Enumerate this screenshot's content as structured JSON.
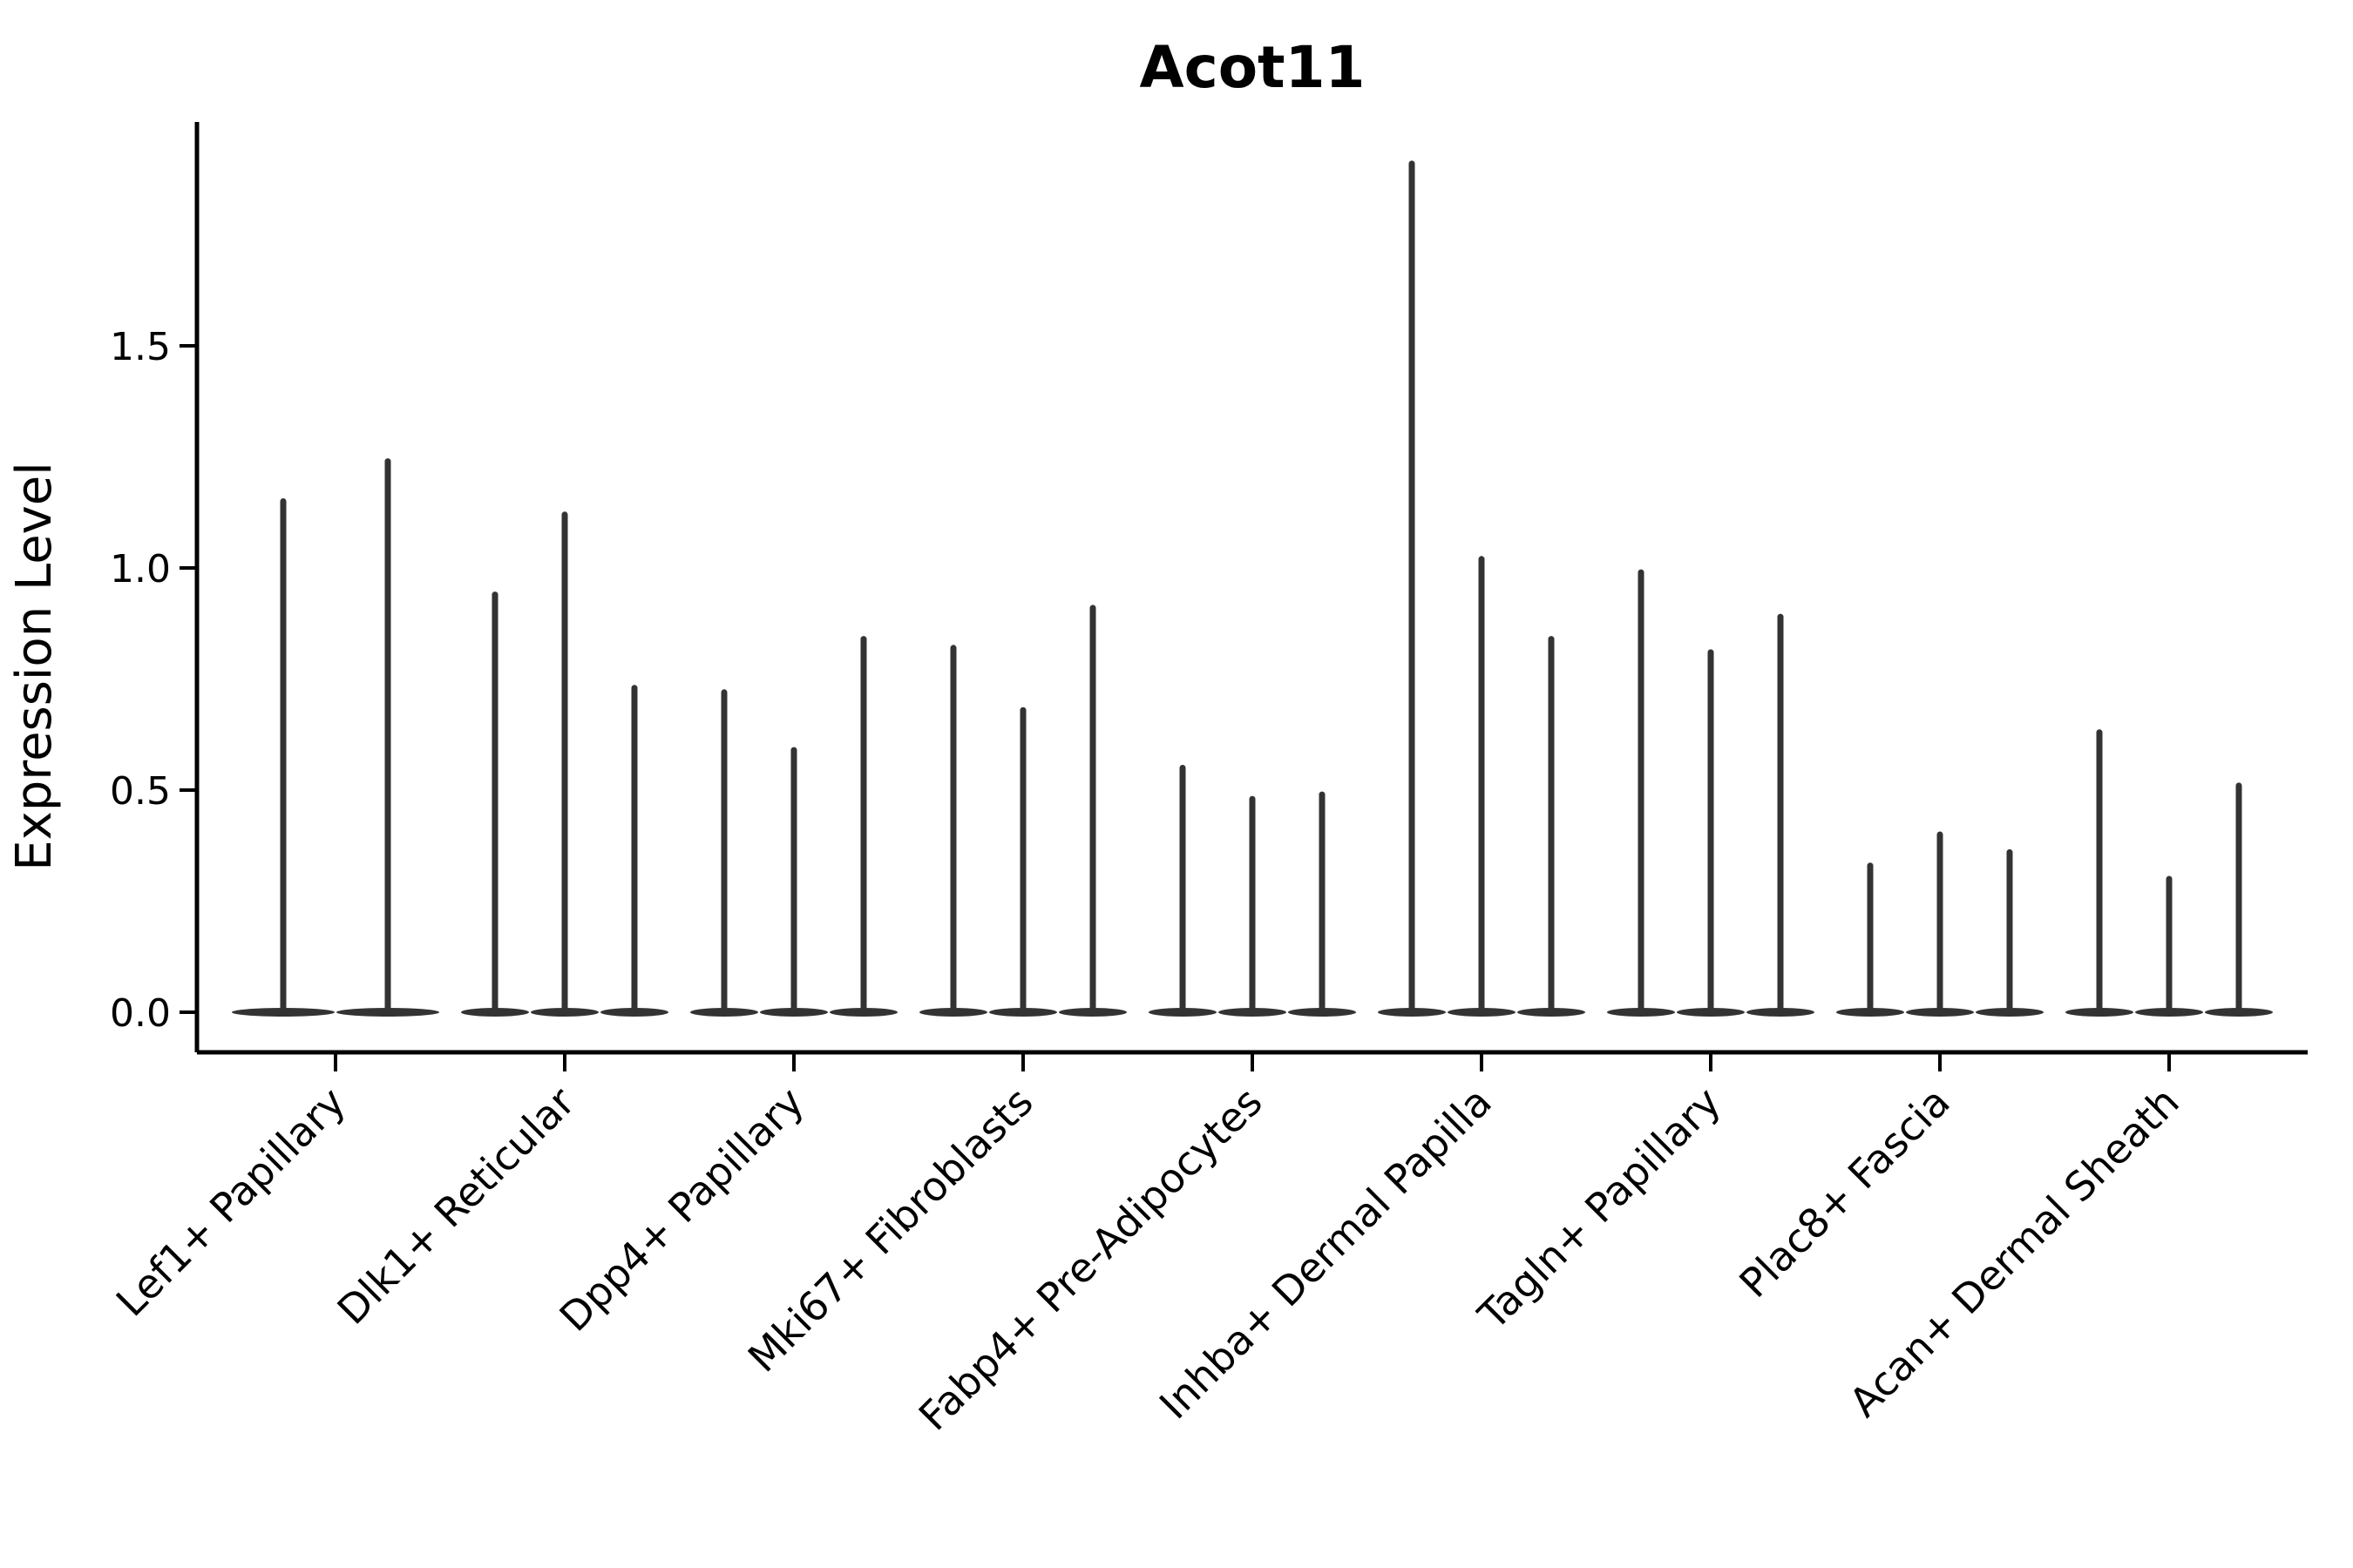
{
  "chart_data": {
    "type": "violin",
    "title": "Acot11",
    "ylabel": "Expression Level",
    "xlabel": "",
    "ytick_labels": [
      "0.0",
      "0.5",
      "1.0",
      "1.5"
    ],
    "ylim": [
      -0.09,
      2.0
    ],
    "grid": false,
    "legend": null,
    "categories": [
      "Lef1+ Papillary",
      "Dlk1+ Reticular",
      "Dpp4+ Papillary",
      "Mki67+ Fibroblasts",
      "Fabp4+ Pre-Adipocytes",
      "Inhba+ Dermal Papilla",
      "Tagln+ Papillary",
      "Plac8+ Fascia",
      "Acan+ Dermal Sheath"
    ],
    "groups": [
      {
        "category": "Lef1+ Papillary",
        "violin_maxima": [
          1.15,
          1.24
        ]
      },
      {
        "category": "Dlk1+ Reticular",
        "violin_maxima": [
          0.94,
          1.12,
          0.73
        ]
      },
      {
        "category": "Dpp4+ Papillary",
        "violin_maxima": [
          0.72,
          0.59,
          0.84
        ]
      },
      {
        "category": "Mki67+ Fibroblasts",
        "violin_maxima": [
          0.82,
          0.68,
          0.91
        ]
      },
      {
        "category": "Fabp4+ Pre-Adipocytes",
        "violin_maxima": [
          0.55,
          0.48,
          0.49
        ]
      },
      {
        "category": "Inhba+ Dermal Papilla",
        "violin_maxima": [
          1.91,
          1.02,
          0.84
        ]
      },
      {
        "category": "Tagln+ Papillary",
        "violin_maxima": [
          0.99,
          0.81,
          0.89
        ]
      },
      {
        "category": "Plac8+ Fascia",
        "violin_maxima": [
          0.33,
          0.4,
          0.36
        ]
      },
      {
        "category": "Acan+ Dermal Sheath",
        "violin_maxima": [
          0.63,
          0.3,
          0.51
        ]
      }
    ],
    "style_note": "Each violin renders as a flat dark body at 0 with a thin vertical spike up to its maximum expression value.",
    "colors": {
      "violin": "#333333",
      "axis": "#000000",
      "text": "#000000",
      "background": "#ffffff"
    }
  }
}
